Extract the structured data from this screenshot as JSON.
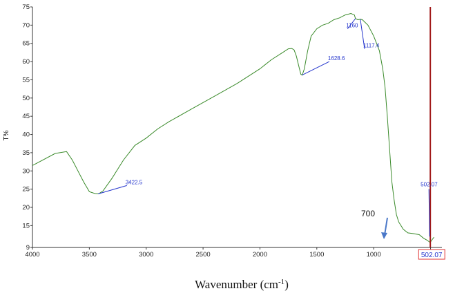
{
  "chart_data": {
    "type": "line",
    "ylabel": "T%",
    "xlabel_main": "Wavenumber (cm",
    "xlabel_sup": "-1",
    "xlabel_close": ")",
    "xlim": [
      4000,
      400
    ],
    "ylim": [
      9,
      75
    ],
    "x_ticks": [
      4000,
      3500,
      3000,
      2500,
      2000,
      1500,
      1000,
      500
    ],
    "x_tick_labels": [
      "4000",
      "3500",
      "3000",
      "2500",
      "2000",
      "1500",
      "1000",
      "500"
    ],
    "y_ticks": [
      9,
      15,
      20,
      25,
      30,
      35,
      40,
      45,
      50,
      55,
      60,
      65,
      70,
      75
    ],
    "y_tick_labels": [
      "9",
      "15",
      "20",
      "25",
      "30",
      "35",
      "40",
      "45",
      "50",
      "55",
      "60",
      "65",
      "70",
      "75"
    ],
    "line_color": "#3a8a2a",
    "cursor_color": "#a01818",
    "peak_color": "#2233cc",
    "series": [
      {
        "x": [
          4000,
          3800,
          3700,
          3650,
          3600,
          3550,
          3500,
          3450,
          3420,
          3380,
          3300,
          3200,
          3100,
          3000,
          2900,
          2800,
          2600,
          2400,
          2200,
          2000,
          1900,
          1800,
          1750,
          1720,
          1700,
          1680,
          1660,
          1640,
          1628,
          1610,
          1580,
          1550,
          1500,
          1450,
          1400,
          1350,
          1300,
          1250,
          1200,
          1170,
          1160,
          1140,
          1117,
          1100,
          1050,
          1000,
          950,
          920,
          900,
          880,
          860,
          840,
          820,
          800,
          780,
          760,
          740,
          700,
          650,
          600,
          560,
          530,
          510,
          502,
          490,
          470
        ],
        "y": [
          31.5,
          34.8,
          35.3,
          33,
          30,
          27,
          24.3,
          23.8,
          23.7,
          24.5,
          28,
          33,
          37,
          39,
          41.5,
          43.5,
          47,
          50.5,
          54,
          58,
          60.5,
          62.5,
          63.5,
          63.6,
          63.2,
          61.5,
          59,
          56.5,
          56.3,
          58,
          63,
          67,
          69,
          70,
          70.5,
          71.5,
          72,
          72.8,
          73.2,
          72.8,
          71.8,
          71.5,
          71.6,
          71.5,
          70,
          67,
          63,
          58,
          53,
          45,
          36,
          27,
          22,
          18,
          16,
          15,
          14,
          13,
          12.8,
          12.5,
          11.5,
          11,
          10.5,
          10.4,
          11,
          11.8
        ]
      }
    ],
    "peak_labels": [
      {
        "label": "3422.5",
        "x": 3422.5,
        "y": 23.7,
        "tx": 3170,
        "ty": 26
      },
      {
        "label": "1628.6",
        "x": 1628.6,
        "y": 56.3,
        "tx": 1390,
        "ty": 60
      },
      {
        "label": "1160",
        "x": 1160,
        "y": 71.8,
        "tx": 1230,
        "ty": 69
      },
      {
        "label": "1117.4",
        "x": 1117.4,
        "y": 71.6,
        "tx": 1080,
        "ty": 63.5
      }
    ],
    "cursor": {
      "x": 502.07,
      "label": "502.07",
      "axis_label": "502.07"
    },
    "annotation": {
      "label": "700"
    }
  }
}
